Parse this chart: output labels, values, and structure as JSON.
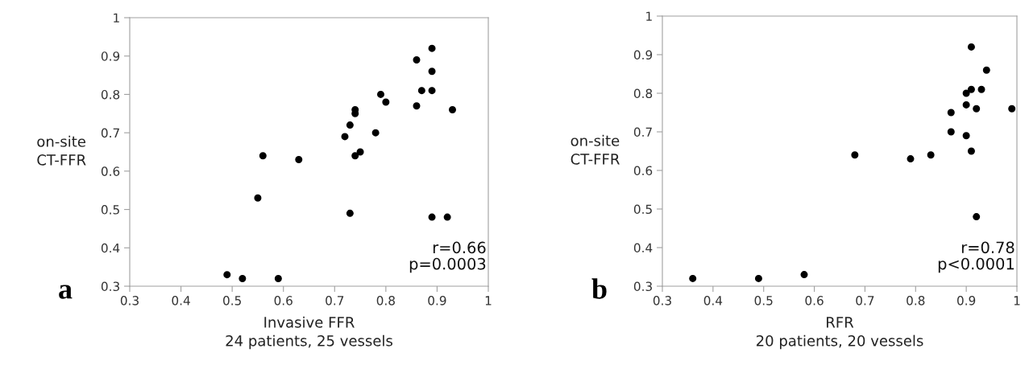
{
  "chart_data": [
    {
      "type": "scatter",
      "xlabel": "Invasive FFR\n24 patients, 25 vessels",
      "ylabel": "on-site\nCT-FFR",
      "annotations": [
        "r=0.66\np=0.0003",
        "a"
      ],
      "x": [
        0.49,
        0.52,
        0.59,
        0.55,
        0.56,
        0.63,
        0.72,
        0.73,
        0.73,
        0.74,
        0.74,
        0.74,
        0.75,
        0.78,
        0.79,
        0.8,
        0.86,
        0.86,
        0.87,
        0.89,
        0.89,
        0.89,
        0.89,
        0.92,
        0.93
      ],
      "series": [
        {
          "color": "#000000",
          "values": [
            0.33,
            0.32,
            0.32,
            0.53,
            0.64,
            0.63,
            0.69,
            0.72,
            0.49,
            0.76,
            0.75,
            0.64,
            0.65,
            0.7,
            0.8,
            0.78,
            0.89,
            0.77,
            0.81,
            0.92,
            0.86,
            0.81,
            0.48,
            0.48,
            0.76
          ]
        }
      ],
      "xlim": [
        0.3,
        1
      ],
      "ylim": [
        0.3,
        1
      ],
      "xticks": [
        0.3,
        0.4,
        0.5,
        0.6,
        0.7,
        0.8,
        0.9,
        1
      ],
      "yticks": [
        0.3,
        0.4,
        0.5,
        0.6,
        0.7,
        0.8,
        0.9,
        1
      ],
      "marker": "circle",
      "grid": false,
      "legend": false
    },
    {
      "type": "scatter",
      "xlabel": "RFR\n20 patients, 20 vessels",
      "ylabel": "on-site\nCT-FFR",
      "annotations": [
        "r=0.78\np<0.0001",
        "b"
      ],
      "x": [
        0.36,
        0.49,
        0.58,
        0.68,
        0.79,
        0.83,
        0.87,
        0.87,
        0.9,
        0.9,
        0.9,
        0.91,
        0.91,
        0.91,
        0.92,
        0.92,
        0.93,
        0.94,
        0.99
      ],
      "series": [
        {
          "color": "#000000",
          "values": [
            0.32,
            0.32,
            0.33,
            0.64,
            0.63,
            0.64,
            0.75,
            0.7,
            0.8,
            0.77,
            0.69,
            0.92,
            0.81,
            0.65,
            0.76,
            0.48,
            0.81,
            0.86,
            0.76
          ]
        }
      ],
      "xlim": [
        0.3,
        1
      ],
      "ylim": [
        0.3,
        1
      ],
      "xticks": [
        0.3,
        0.4,
        0.5,
        0.6,
        0.7,
        0.8,
        0.9,
        1
      ],
      "yticks": [
        0.3,
        0.4,
        0.5,
        0.6,
        0.7,
        0.8,
        0.9,
        1
      ],
      "marker": "circle",
      "grid": false,
      "legend": false
    }
  ]
}
